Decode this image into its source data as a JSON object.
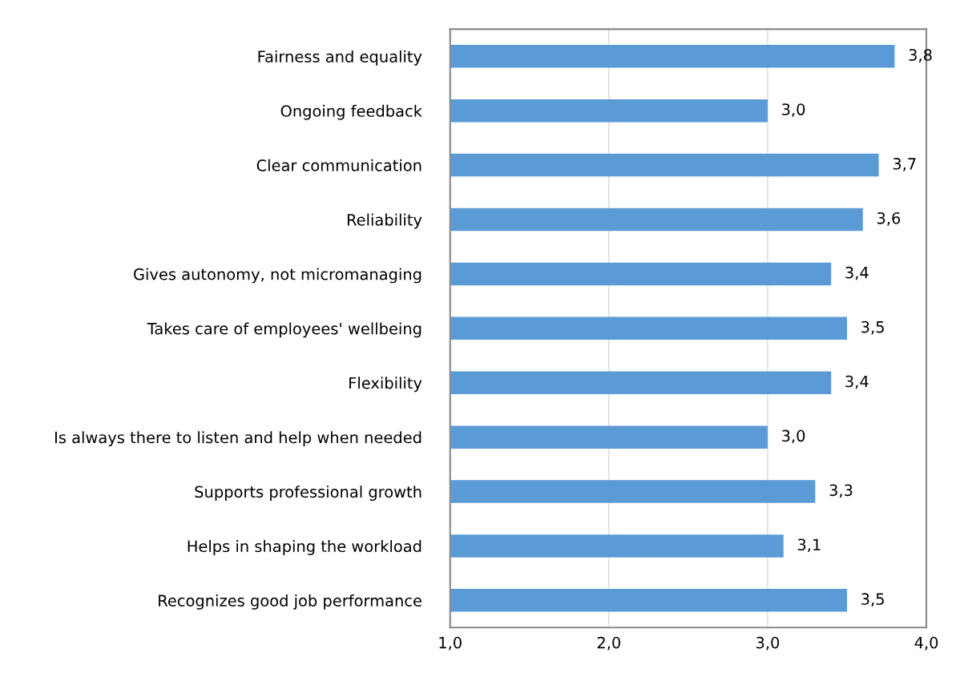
{
  "chart_data": {
    "type": "bar",
    "orientation": "horizontal",
    "categories": [
      "Fairness and equality",
      "Ongoing feedback",
      "Clear communication",
      "Reliability",
      "Gives autonomy, not micromanaging",
      "Takes care of employees' wellbeing",
      "Flexibility",
      "Is always there to listen and help when needed",
      "Supports professional growth",
      "Helps in shaping the workload",
      "Recognizes good job performance"
    ],
    "values": [
      3.8,
      3.0,
      3.7,
      3.6,
      3.4,
      3.5,
      3.4,
      3.0,
      3.3,
      3.1,
      3.5
    ],
    "value_labels": [
      "3,8",
      "3,0",
      "3,7",
      "3,6",
      "3,4",
      "3,5",
      "3,4",
      "3,0",
      "3,3",
      "3,1",
      "3,5"
    ],
    "color": "#5b9bd5",
    "xlim": [
      1,
      4
    ],
    "xticks": [
      {
        "value": 1,
        "label": "1,0"
      },
      {
        "value": 2,
        "label": "2,0"
      },
      {
        "value": 3,
        "label": "3,0"
      },
      {
        "value": 4,
        "label": "4,0"
      }
    ],
    "grid": "x"
  }
}
